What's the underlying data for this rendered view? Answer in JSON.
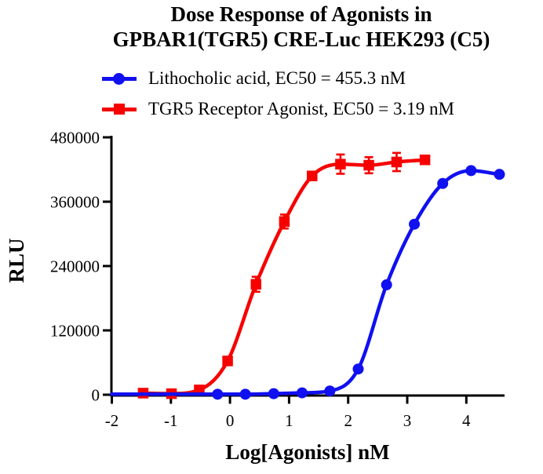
{
  "figure": {
    "title_line1": "Dose Response of Agonists in",
    "title_line2": "GPBAR1(TGR5) CRE-Luc HEK293（C5）"
  },
  "legend": {
    "items": [
      {
        "label": "Lithocholic acid, EC50 = 455.3 nM",
        "marker": "circle",
        "color": "#1010f0"
      },
      {
        "label": "TGR5 Receptor Agonist, EC50 = 3.19 nM",
        "marker": "square",
        "color": "#f60000"
      }
    ]
  },
  "chart_data": {
    "type": "line",
    "title": "Dose Response of Agonists in GPBAR1(TGR5) CRE-Luc HEK293（C5）",
    "xlabel": "Log[Agonists] nM",
    "ylabel": "RLU",
    "xlim": [
      -2,
      4.65
    ],
    "ylim": [
      0,
      480000
    ],
    "x_ticks": [
      -2,
      -1,
      0,
      1,
      2,
      3,
      4
    ],
    "y_ticks": [
      0,
      120000,
      240000,
      360000,
      480000
    ],
    "grid": false,
    "legend_position": "top",
    "series": [
      {
        "name": "Lithocholic acid",
        "ec50_label": "EC50 = 455.3 nM",
        "color": "#1010f0",
        "marker": "circle",
        "x": [
          -0.21,
          0.26,
          0.74,
          1.22,
          1.69,
          2.17,
          2.65,
          3.12,
          3.6,
          4.08,
          4.56
        ],
        "y": [
          1000,
          1000,
          2000,
          3500,
          7000,
          48000,
          205000,
          318000,
          394000,
          418000,
          411000
        ],
        "yerr": [
          0,
          0,
          0,
          0,
          0,
          0,
          0,
          0,
          0,
          0,
          0
        ],
        "curve": "sigmoid-fit",
        "extend_curve_to_xmin": true
      },
      {
        "name": "TGR5 Receptor Agonist",
        "ec50_label": "EC50 = 3.19 nM",
        "color": "#f60000",
        "marker": "square",
        "x": [
          -1.47,
          -0.99,
          -0.52,
          -0.04,
          0.44,
          0.92,
          1.39,
          1.87,
          2.35,
          2.82,
          3.3
        ],
        "y": [
          3000,
          2000,
          9000,
          63000,
          206000,
          323000,
          408000,
          430000,
          428000,
          434000,
          438000
        ],
        "yerr": [
          0,
          0,
          0,
          0,
          14000,
          13000,
          0,
          18000,
          15000,
          17000,
          0
        ],
        "curve": "sigmoid-fit",
        "extend_curve_to_xmin": false
      }
    ]
  }
}
